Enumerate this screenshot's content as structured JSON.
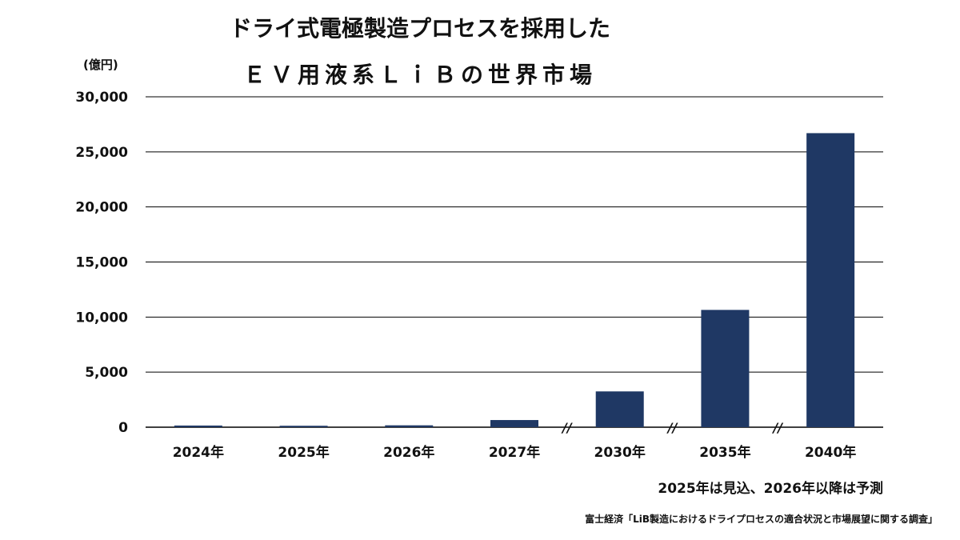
{
  "title_line1": "ドライ式電極製造プロセスを採用した",
  "title_line2": "ＥＶ用液系ＬｉＢの世界市場",
  "unit_label": "(億円)",
  "note": "2025年は見込、2026年以降は予測",
  "source": "富士経済「LiB製造におけるドライプロセスの適合状況と市場展望に関する調査」",
  "colors": {
    "bar": "#1f3864",
    "grid": "#000000"
  },
  "chart_data": {
    "type": "bar",
    "title": "ドライ式電極製造プロセスを採用した ＥＶ用液系ＬｉＢの世界市場",
    "ylabel": "(億円)",
    "xlabel": "",
    "ylim": [
      0,
      30000
    ],
    "yticks": [
      0,
      5000,
      10000,
      15000,
      20000,
      25000,
      30000
    ],
    "ytick_labels": [
      "0",
      "5,000",
      "10,000",
      "15,000",
      "20,000",
      "25,000",
      "30,000"
    ],
    "categories": [
      "2024年",
      "2025年",
      "2026年",
      "2027年",
      "2030年",
      "2035年",
      "2040年"
    ],
    "values": [
      150,
      130,
      170,
      650,
      3250,
      10650,
      26700
    ],
    "axis_breaks_after": [
      "2027年",
      "2030年",
      "2035年"
    ],
    "break_symbol": "//",
    "grid": true,
    "legend": "none"
  }
}
